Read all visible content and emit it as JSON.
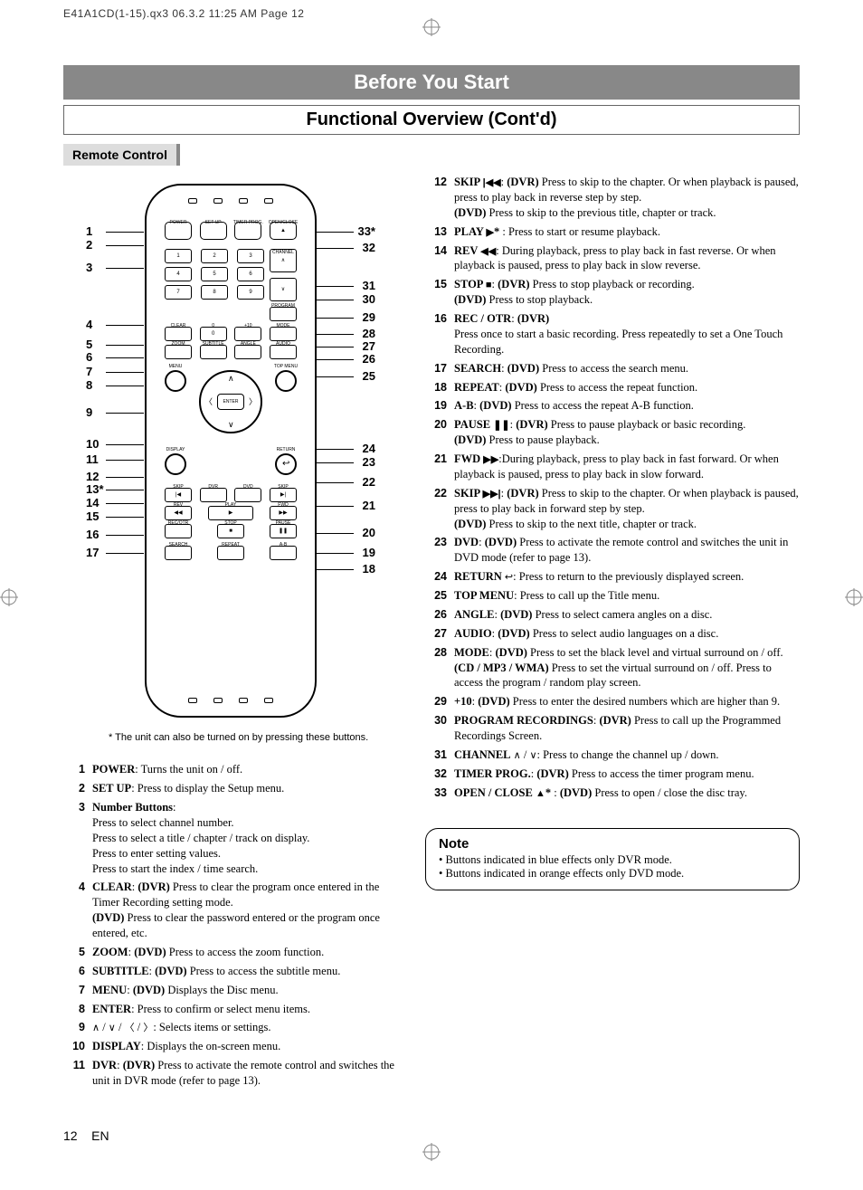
{
  "meta_header": "E41A1CD(1-15).qx3  06.3.2 11:25 AM  Page 12",
  "title_banner": "Before You Start",
  "subtitle_banner": "Functional Overview (Cont'd)",
  "section_label": "Remote Control",
  "footnote": "* The unit can also be turned on by pressing these buttons.",
  "page_number": "12",
  "page_lang": "EN",
  "remote": {
    "row1": [
      "POWER",
      "SET UP",
      "TIMER PROG.",
      "OPEN/CLOSE"
    ],
    "row2": [
      "1",
      "2",
      "3"
    ],
    "row3": [
      "4",
      "5",
      "6"
    ],
    "row4": [
      "7",
      "8",
      "9"
    ],
    "row5": [
      "CLEAR",
      "0",
      "+10",
      "MODE"
    ],
    "row6": [
      "ZOOM",
      "SUBTITLE",
      "ANGLE",
      "AUDIO"
    ],
    "menu_left": "MENU",
    "menu_right": "TOP MENU",
    "display": "DISPLAY",
    "return": "RETURN",
    "enter": "ENTER",
    "row_media1": [
      "SKIP",
      "DVR",
      "DVD",
      "SKIP"
    ],
    "row_media2": [
      "REV",
      "PLAY",
      "FWD"
    ],
    "row_media3": [
      "REC/OTR",
      "STOP",
      "PAUSE"
    ],
    "row_media4": [
      "SEARCH",
      "REPEAT",
      "A-B"
    ],
    "channel": "CHANNEL",
    "prog_rec": "PROGRAM"
  },
  "callouts_left": [
    {
      "n": "1",
      "t": 45
    },
    {
      "n": "2",
      "t": 60
    },
    {
      "n": "3",
      "t": 85
    },
    {
      "n": "4",
      "t": 148
    },
    {
      "n": "5",
      "t": 170
    },
    {
      "n": "6",
      "t": 184
    },
    {
      "n": "7",
      "t": 200
    },
    {
      "n": "8",
      "t": 215
    },
    {
      "n": "9",
      "t": 245
    },
    {
      "n": "10",
      "t": 280
    },
    {
      "n": "11",
      "t": 297
    },
    {
      "n": "12",
      "t": 316
    },
    {
      "n": "13*",
      "t": 330
    },
    {
      "n": "14",
      "t": 345
    },
    {
      "n": "15",
      "t": 360
    },
    {
      "n": "16",
      "t": 380
    },
    {
      "n": "17",
      "t": 400
    }
  ],
  "callouts_right": [
    {
      "n": "33*",
      "t": 45
    },
    {
      "n": "32",
      "t": 63
    },
    {
      "n": "31",
      "t": 105
    },
    {
      "n": "30",
      "t": 120
    },
    {
      "n": "29",
      "t": 140
    },
    {
      "n": "28",
      "t": 158
    },
    {
      "n": "27",
      "t": 172
    },
    {
      "n": "26",
      "t": 186
    },
    {
      "n": "25",
      "t": 205
    },
    {
      "n": "24",
      "t": 285
    },
    {
      "n": "23",
      "t": 300
    },
    {
      "n": "22",
      "t": 322
    },
    {
      "n": "21",
      "t": 348
    },
    {
      "n": "20",
      "t": 378
    },
    {
      "n": "19",
      "t": 400
    },
    {
      "n": "18",
      "t": 418
    }
  ],
  "left_items": [
    {
      "n": "1",
      "html": "<b>POWER</b>: Turns the unit on / off."
    },
    {
      "n": "2",
      "html": "<b>SET UP</b>: Press to display the Setup menu."
    },
    {
      "n": "3",
      "html": "<b>Number Buttons</b>:<br>Press to select channel number.<br>Press to select a title / chapter / track on display.<br>Press to enter setting values.<br>Press to start the index / time search."
    },
    {
      "n": "4",
      "html": "<b>CLEAR</b>: <b>(DVR)</b> Press to clear the program once entered in the Timer Recording setting mode.<br><b>(DVD)</b> Press to clear the password entered or the program once entered, etc."
    },
    {
      "n": "5",
      "html": "<b>ZOOM</b>: <b>(DVD)</b> Press to access the zoom function."
    },
    {
      "n": "6",
      "html": "<b>SUBTITLE</b>: <b>(DVD)</b> Press to access the subtitle menu."
    },
    {
      "n": "7",
      "html": "<b>MENU</b>: <b>(DVD)</b> Displays the Disc menu."
    },
    {
      "n": "8",
      "html": "<b>ENTER</b>: Press to confirm or select menu items."
    },
    {
      "n": "9",
      "html": "<span class='icon'>∧</span> / <span class='icon'>∨</span> / <span class='icon'>〈</span> / <span class='icon'>〉</span>: Selects items or settings."
    },
    {
      "n": "10",
      "html": "<b>DISPLAY</b>: Displays the on-screen menu."
    },
    {
      "n": "11",
      "html": "<b>DVR</b>: <b>(DVR)</b> Press to activate the remote control and switches the unit in DVR mode (refer to page 13)."
    }
  ],
  "right_items": [
    {
      "n": "12",
      "html": "<b>SKIP <span class='icon'>|◀◀</span></b>: <b>(DVR)</b> Press to skip to the chapter. Or when playback is paused, press to play back in reverse step by step.<br><b>(DVD)</b> Press to skip to the previous title, chapter or track."
    },
    {
      "n": "13",
      "html": "<b>PLAY <span class='icon'>▶</span>*</b> : Press to start or resume playback."
    },
    {
      "n": "14",
      "html": "<b>REV <span class='icon'>◀◀</span></b>: During playback, press to play back in fast reverse. Or when playback is paused, press to play back in slow reverse."
    },
    {
      "n": "15",
      "html": "<b>STOP <span class='icon'>■</span></b>: <b>(DVR)</b> Press to stop playback or recording.<br><b>(DVD)</b> Press to stop playback."
    },
    {
      "n": "16",
      "html": "<b>REC / OTR</b>: <b>(DVR)</b><br>Press once to start a basic recording. Press repeatedly to set a One Touch Recording."
    },
    {
      "n": "17",
      "html": "<b>SEARCH</b>: <b>(DVD)</b> Press to access the search menu."
    },
    {
      "n": "18",
      "html": "<b>REPEAT</b>: <b>(DVD)</b> Press to access the repeat function."
    },
    {
      "n": "19",
      "html": "<b>A-B</b>: <b>(DVD)</b> Press to access the repeat A-B function."
    },
    {
      "n": "20",
      "html": "<b>PAUSE <span class='icon'>❚❚</span></b>: <b>(DVR)</b> Press to pause playback or basic recording.<br><b>(DVD)</b> Press to pause playback."
    },
    {
      "n": "21",
      "html": "<b>FWD <span class='icon'>▶▶</span></b>:During playback, press to play back in fast forward. Or when playback is paused, press to play back in slow forward."
    },
    {
      "n": "22",
      "html": "<b>SKIP <span class='icon'>▶▶|</span></b>: <b>(DVR)</b> Press to skip to the chapter. Or when playback is paused, press to play back in forward step by step.<br><b>(DVD)</b> Press to skip to the next title, chapter or track."
    },
    {
      "n": "23",
      "html": "<b>DVD</b>: <b>(DVD)</b> Press to activate the remote control and switches the unit in DVD mode (refer to page 13)."
    },
    {
      "n": "24",
      "html": "<b>RETURN</b> <span class='icon'>↩</span>: Press to return to the previously displayed screen."
    },
    {
      "n": "25",
      "html": "<b>TOP MENU</b>: Press to call up the Title menu."
    },
    {
      "n": "26",
      "html": "<b>ANGLE</b>: <b>(DVD)</b> Press to select camera angles on a disc."
    },
    {
      "n": "27",
      "html": "<b>AUDIO</b>: <b>(DVD)</b> Press to select audio languages on a disc."
    },
    {
      "n": "28",
      "html": "<b>MODE</b>: <b>(DVD)</b> Press to set the black level and virtual surround on / off.<br><b>(CD / MP3 / WMA)</b> Press to set the virtual surround on / off. Press to access the program / random play screen."
    },
    {
      "n": "29",
      "html": "<b>+10</b>: <b>(DVD)</b> Press to enter the desired numbers which are higher than 9."
    },
    {
      "n": "30",
      "html": "<b>PROGRAM RECORDINGS</b>: <b>(DVR)</b> Press to call up the Programmed Recordings Screen."
    },
    {
      "n": "31",
      "html": "<b>CHANNEL</b> <span class='icon'>∧</span> / <span class='icon'>∨</span>: Press to change the channel up / down."
    },
    {
      "n": "32",
      "html": "<b>TIMER PROG.</b>: <b>(DVR)</b> Press to access the timer program menu."
    },
    {
      "n": "33",
      "html": "<b>OPEN / CLOSE <span class='icon'>▲</span>*</b> : <b>(DVD)</b> Press to open / close the disc tray."
    }
  ],
  "note": {
    "title": "Note",
    "lines": [
      "Buttons indicated in blue effects only DVR mode.",
      "Buttons indicated in orange effects only DVD mode."
    ]
  }
}
